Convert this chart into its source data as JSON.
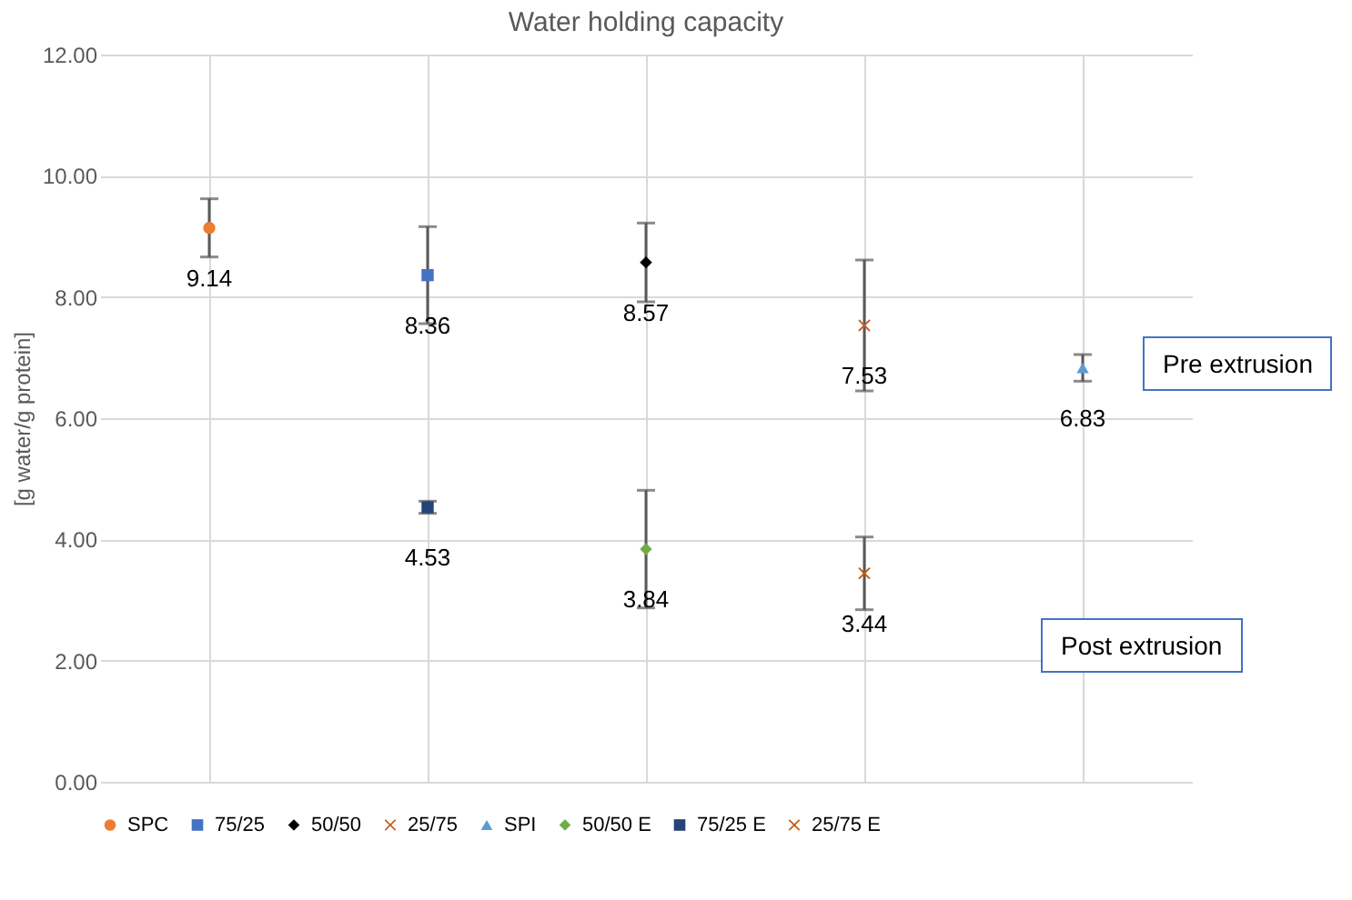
{
  "chart_data": {
    "type": "scatter",
    "title": "Water holding capacity",
    "ylabel": "[g water/g protein]",
    "categories": [
      null,
      null,
      null,
      null,
      null
    ],
    "series": [
      {
        "name": "SPC",
        "color": "#ed7d31",
        "marker": "circle",
        "values": [
          9.14,
          null,
          null,
          null,
          null
        ],
        "errors": [
          0.48,
          null,
          null,
          null,
          null
        ]
      },
      {
        "name": "75/25",
        "color": "#4472c4",
        "marker": "square",
        "values": [
          null,
          8.36,
          null,
          null,
          null
        ],
        "errors": [
          null,
          0.8,
          null,
          null,
          null
        ]
      },
      {
        "name": "50/50",
        "color": "#000000",
        "marker": "diamond",
        "values": [
          null,
          null,
          8.57,
          null,
          null
        ],
        "errors": [
          null,
          null,
          0.65,
          null,
          null
        ]
      },
      {
        "name": "25/75",
        "color": "#c0612b",
        "marker": "cross",
        "values": [
          null,
          null,
          null,
          7.53,
          null
        ],
        "errors": [
          null,
          null,
          null,
          1.08,
          null
        ]
      },
      {
        "name": "SPI",
        "color": "#5b9bd5",
        "marker": "triangle",
        "values": [
          null,
          null,
          null,
          null,
          6.83
        ],
        "errors": [
          null,
          null,
          null,
          null,
          0.22
        ]
      },
      {
        "name": "50/50 E",
        "color": "#70ad47",
        "marker": "diamond",
        "values": [
          null,
          null,
          3.84,
          null,
          null
        ],
        "errors": [
          null,
          null,
          0.97,
          null,
          null
        ]
      },
      {
        "name": "75/25 E",
        "color": "#264478",
        "marker": "square",
        "values": [
          null,
          4.53,
          null,
          null,
          null
        ],
        "errors": [
          null,
          0.1,
          null,
          null,
          null
        ]
      },
      {
        "name": "25/75 E",
        "color": "#c55a11",
        "marker": "cross",
        "values": [
          null,
          null,
          null,
          3.44,
          null
        ],
        "errors": [
          null,
          null,
          null,
          0.6,
          null
        ]
      }
    ],
    "ylim": [
      0,
      12
    ],
    "yticks": [
      {
        "value": 0,
        "label": "0.00"
      },
      {
        "value": 2,
        "label": "2.00"
      },
      {
        "value": 4,
        "label": "4.00"
      },
      {
        "value": 6,
        "label": "6.00"
      },
      {
        "value": 8,
        "label": "8.00"
      },
      {
        "value": 10,
        "label": "10.00"
      },
      {
        "value": 12,
        "label": "12.00"
      }
    ],
    "tick_labels": "y",
    "grid": true,
    "legend": "bottom",
    "data_labels": true,
    "annotations": [
      "Pre extrusion",
      "Post extrusion"
    ]
  }
}
